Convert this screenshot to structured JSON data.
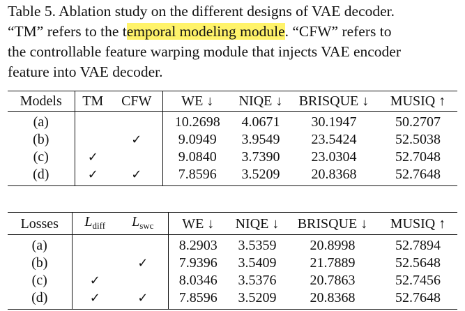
{
  "caption": {
    "line1": "Table 5. Ablation study on the different designs of VAE decoder.",
    "line2_before": "“TM” refers to the t",
    "line2_highlight": "emporal modeling module",
    "line2_after": ". “CFW” refers to",
    "line3": "the controllable feature warping module that injects VAE encoder",
    "line4": "feature into VAE decoder."
  },
  "highlight_color": "#fff36a",
  "table1": {
    "headers": [
      "Models",
      "TM",
      "CFW",
      "WE ↓",
      "NIQE ↓",
      "BRISQUE ↓",
      "MUSIQ ↑"
    ],
    "rows": [
      [
        "(a)",
        "",
        "",
        "10.2698",
        "4.0671",
        "30.1947",
        "50.2707"
      ],
      [
        "(b)",
        "",
        "✓",
        "9.0949",
        "3.9549",
        "23.5424",
        "52.5038"
      ],
      [
        "(c)",
        "✓",
        "",
        "9.0840",
        "3.7390",
        "23.0304",
        "52.7048"
      ],
      [
        "(d)",
        "✓",
        "✓",
        "7.8596",
        "3.5209",
        "20.8368",
        "52.7648"
      ]
    ]
  },
  "table2": {
    "headers": {
      "c0": "Losses",
      "c1_main": "L",
      "c1_sub": "diff",
      "c2_main": "L",
      "c2_sub": "swc",
      "c3": "WE ↓",
      "c4": "NIQE ↓",
      "c5": "BRISQUE ↓",
      "c6": "MUSIQ ↑"
    },
    "rows": [
      [
        "(a)",
        "",
        "",
        "8.2903",
        "3.5359",
        "20.8998",
        "52.7894"
      ],
      [
        "(b)",
        "",
        "✓",
        "7.9396",
        "3.5409",
        "21.7889",
        "52.5648"
      ],
      [
        "(c)",
        "✓",
        "",
        "8.0346",
        "3.5376",
        "20.7863",
        "52.7456"
      ],
      [
        "(d)",
        "✓",
        "✓",
        "7.8596",
        "3.5209",
        "20.8368",
        "52.7648"
      ]
    ]
  }
}
